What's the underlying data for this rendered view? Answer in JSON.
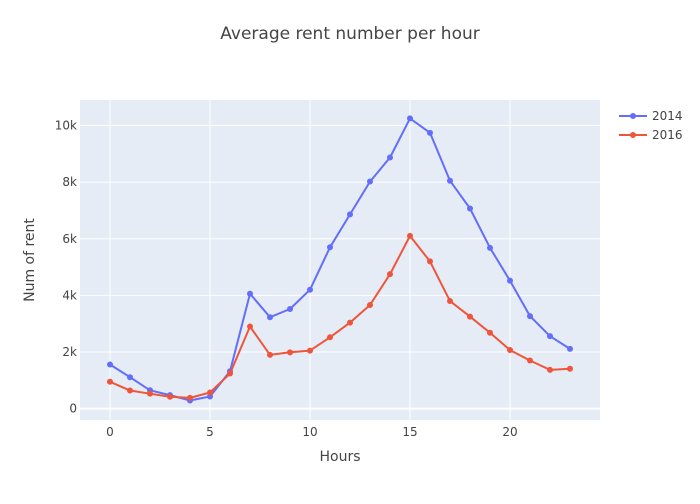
{
  "chart_data": {
    "type": "line",
    "title": "Average rent number per hour",
    "xlabel": "Hours",
    "ylabel": "Num of rent",
    "x": [
      0,
      1,
      2,
      3,
      4,
      5,
      6,
      7,
      8,
      9,
      10,
      11,
      12,
      13,
      14,
      15,
      16,
      17,
      18,
      19,
      20,
      21,
      22,
      23
    ],
    "xlim": [
      -1.5,
      24.5
    ],
    "ylim": [
      -400,
      10900
    ],
    "x_ticks": [
      0,
      5,
      10,
      15,
      20
    ],
    "x_tick_labels": [
      "0",
      "5",
      "10",
      "15",
      "20"
    ],
    "y_ticks": [
      0,
      2000,
      4000,
      6000,
      8000,
      10000
    ],
    "y_tick_labels": [
      "0",
      "2k",
      "4k",
      "6k",
      "8k",
      "10k"
    ],
    "grid": true,
    "legend": "top-right",
    "series": [
      {
        "name": "2014",
        "color": "#636efa",
        "values": [
          1560,
          1110,
          650,
          480,
          290,
          430,
          1320,
          4060,
          3230,
          3520,
          4200,
          5700,
          6860,
          8020,
          8870,
          10250,
          9740,
          8050,
          7070,
          5680,
          4520,
          3270,
          2560,
          2110
        ]
      },
      {
        "name": "2016",
        "color": "#ef553b",
        "values": [
          950,
          640,
          530,
          420,
          380,
          570,
          1240,
          2900,
          1900,
          1990,
          2050,
          2520,
          3040,
          3660,
          4750,
          6100,
          5200,
          3800,
          3250,
          2680,
          2070,
          1700,
          1370,
          1410
        ]
      }
    ]
  }
}
